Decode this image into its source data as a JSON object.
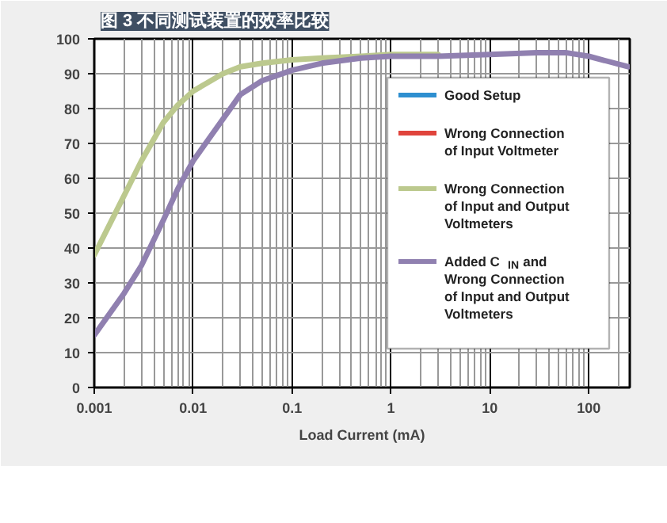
{
  "chart_data": {
    "type": "line",
    "title": "图 3 不同测试装置的效率比较",
    "xlabel": "Load Current (mA)",
    "log": "x",
    "xlim": [
      0.001,
      260
    ],
    "xticks": [
      0.001,
      0.01,
      0.1,
      1,
      10,
      100
    ],
    "ylim": [
      0,
      100
    ],
    "yticks": [
      0,
      10,
      20,
      30,
      40,
      50,
      60,
      70,
      80,
      90,
      100
    ],
    "x": [
      0.001,
      0.002,
      0.003,
      0.005,
      0.007,
      0.01,
      0.02,
      0.03,
      0.05,
      0.1,
      0.2,
      0.5,
      1,
      3,
      10,
      30,
      60,
      100,
      250
    ],
    "grid": true,
    "legend": "right",
    "series": [
      {
        "name": "Good Setup",
        "color": "#2e8fd0",
        "values": [
          null,
          null,
          null,
          null,
          null,
          null,
          null,
          null,
          null,
          null,
          null,
          null,
          null,
          null,
          null,
          null,
          null,
          null,
          null
        ]
      },
      {
        "name": "Wrong Connection of Input Voltmeter",
        "color": "#e0443c",
        "values": [
          null,
          null,
          null,
          null,
          null,
          null,
          null,
          null,
          null,
          null,
          null,
          null,
          null,
          null,
          null,
          null,
          null,
          null,
          null
        ]
      },
      {
        "name": "Wrong Connection of Input and Output Voltmeters",
        "color": "#bcc98e",
        "values": [
          38,
          55,
          65,
          76,
          81,
          85,
          90,
          92,
          93,
          94,
          94.5,
          95,
          95.5,
          95.5,
          null,
          null,
          null,
          null,
          null
        ]
      },
      {
        "name": "Added C$_{IN}$ and Wrong Connection of Input and Output Voltmeters",
        "color": "#9080b0",
        "values": [
          15,
          27,
          35,
          48,
          57,
          65,
          77,
          84,
          88,
          91,
          93,
          94.5,
          95,
          95,
          95.5,
          96,
          96,
          95,
          92
        ]
      }
    ]
  }
}
